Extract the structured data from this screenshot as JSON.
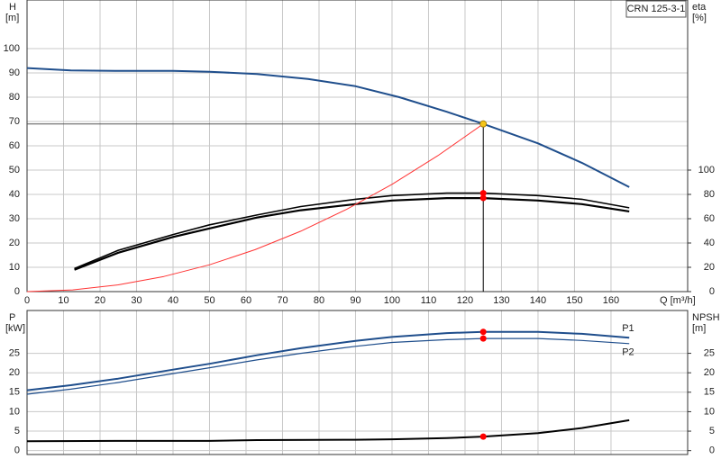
{
  "chart_data": [
    {
      "type": "line",
      "title": "CRN 125-3-1",
      "ylabel": "H",
      "yunit": "[m]",
      "y2label": "eta",
      "y2unit": "[%]",
      "xlabel": "Q [m³/h]",
      "xlim": [
        0,
        181
      ],
      "xticks": [
        0,
        10,
        20,
        30,
        40,
        50,
        60,
        70,
        80,
        90,
        100,
        110,
        120,
        130,
        140,
        150,
        160
      ],
      "show_xtick_labels": true,
      "ylim": [
        0,
        120
      ],
      "yticks": [
        0,
        10,
        20,
        30,
        40,
        50,
        60,
        70,
        80,
        90,
        100
      ],
      "y2lim": [
        0,
        240
      ],
      "y2ticks": [
        0,
        20,
        40,
        60,
        80,
        100
      ],
      "grid": true,
      "series": [
        {
          "color": "#1f4e8c",
          "width": 2,
          "x": [
            0,
            12,
            25,
            40,
            50,
            63,
            77,
            90,
            102,
            115,
            125,
            140,
            152,
            165
          ],
          "values": [
            92,
            91,
            90.8,
            90.8,
            90.5,
            89.5,
            87.5,
            84.5,
            80,
            74,
            69,
            61,
            53,
            43
          ]
        },
        {
          "color": "#000000",
          "width": 1.6,
          "axis": "y2",
          "x": [
            13,
            25,
            40,
            50,
            63,
            75,
            90,
            100,
            115,
            125,
            140,
            152,
            165
          ],
          "values": [
            19,
            34,
            47,
            55,
            63,
            70,
            76,
            79,
            81,
            81,
            79,
            76,
            69
          ]
        },
        {
          "color": "#000000",
          "width": 2.2,
          "axis": "y2",
          "x": [
            13,
            25,
            40,
            50,
            63,
            75,
            90,
            100,
            115,
            125,
            140,
            152,
            165
          ],
          "values": [
            18,
            32,
            45,
            52,
            61,
            67,
            72,
            75,
            77,
            77,
            75,
            72,
            66
          ]
        },
        {
          "color": "#ff3333",
          "width": 1,
          "x": [
            0,
            12.5,
            25,
            37.5,
            50,
            62.5,
            75,
            87.5,
            100,
            112.5,
            125
          ],
          "values": [
            0,
            0.69,
            2.76,
            6.21,
            11.04,
            17.25,
            24.84,
            33.81,
            44.16,
            55.89,
            69
          ]
        }
      ],
      "points": [
        {
          "x": 125,
          "y": 69,
          "color": "#f5c518",
          "guides": true
        },
        {
          "x": 125,
          "y": 81,
          "axis": "y2",
          "color": "#ff0000"
        },
        {
          "x": 125,
          "y": 77,
          "axis": "y2",
          "color": "#ff0000"
        }
      ]
    },
    {
      "type": "line",
      "ylabel": "P",
      "yunit": "[kW]",
      "y2label": "NPSH",
      "y2unit": "[m]",
      "xlim": [
        0,
        181
      ],
      "xticks": [
        0,
        10,
        20,
        30,
        40,
        50,
        60,
        70,
        80,
        90,
        100,
        110,
        120,
        130,
        140,
        150,
        160
      ],
      "show_xtick_labels": false,
      "ylim": [
        -1,
        36
      ],
      "yticks": [
        0,
        5,
        10,
        15,
        20,
        25
      ],
      "y2lim": [
        -1,
        36
      ],
      "y2ticks": [
        0,
        5,
        10,
        15,
        20,
        25
      ],
      "grid": true,
      "series": [
        {
          "name": "P1",
          "color": "#1f4e8c",
          "width": 2,
          "x": [
            0,
            12,
            25,
            40,
            50,
            63,
            75,
            90,
            100,
            115,
            125,
            140,
            152,
            165
          ],
          "values": [
            15.5,
            16.8,
            18.5,
            20.8,
            22.3,
            24.5,
            26.3,
            28.2,
            29.2,
            30.2,
            30.5,
            30.5,
            30,
            29
          ]
        },
        {
          "name": "P2",
          "color": "#1f4e8c",
          "width": 1.2,
          "x": [
            0,
            12,
            25,
            40,
            50,
            63,
            75,
            90,
            100,
            115,
            125,
            140,
            152,
            165
          ],
          "values": [
            14.5,
            15.8,
            17.5,
            19.8,
            21.3,
            23.3,
            25,
            26.8,
            27.8,
            28.5,
            28.8,
            28.8,
            28.3,
            27.5
          ]
        },
        {
          "color": "#000000",
          "width": 2,
          "axis": "y2",
          "x": [
            0,
            25,
            50,
            63,
            90,
            100,
            115,
            125,
            140,
            152,
            165
          ],
          "values": [
            2.4,
            2.5,
            2.5,
            2.7,
            2.8,
            2.9,
            3.2,
            3.6,
            4.5,
            5.8,
            7.8
          ]
        }
      ],
      "points": [
        {
          "x": 125,
          "y": 30.5,
          "color": "#ff0000"
        },
        {
          "x": 125,
          "y": 28.8,
          "color": "#ff0000"
        },
        {
          "x": 125,
          "y": 3.6,
          "axis": "y2",
          "color": "#ff0000"
        }
      ]
    }
  ]
}
